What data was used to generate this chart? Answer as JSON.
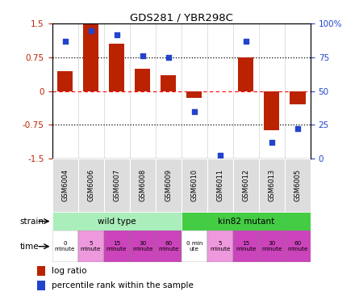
{
  "title": "GDS281 / YBR298C",
  "categories": [
    "GSM6004",
    "GSM6006",
    "GSM6007",
    "GSM6008",
    "GSM6009",
    "GSM6010",
    "GSM6011",
    "GSM6012",
    "GSM6013",
    "GSM6005"
  ],
  "log_ratio": [
    0.45,
    1.5,
    1.05,
    0.5,
    0.35,
    -0.15,
    0.0,
    0.75,
    -0.88,
    -0.3
  ],
  "percentile_pct": [
    87,
    95,
    92,
    76,
    75,
    35,
    2,
    87,
    12,
    22
  ],
  "bar_color": "#bb2200",
  "dot_color": "#2244cc",
  "ylim_left": [
    -1.5,
    1.5
  ],
  "ylim_right": [
    0,
    100
  ],
  "yticks_left": [
    -1.5,
    -0.75,
    0,
    0.75,
    1.5
  ],
  "yticks_right": [
    0,
    25,
    50,
    75,
    100
  ],
  "strain_labels": [
    "wild type",
    "kin82 mutant"
  ],
  "strain_color_wt": "#aaeebb",
  "strain_color_mut": "#44cc44",
  "time_labels": [
    "0\nminute",
    "5\nminute",
    "15\nminute",
    "30\nminute",
    "60\nminute",
    "0 min\nute",
    "5\nminute",
    "15\nminute",
    "30\nminute",
    "60\nminute"
  ],
  "time_color_white": "#ffffff",
  "time_color_light": "#ee99dd",
  "time_color_dark": "#cc44bb",
  "time_colors": [
    "#ffffff",
    "#ee99dd",
    "#cc44bb",
    "#cc44bb",
    "#cc44bb",
    "#ffffff",
    "#ee99dd",
    "#cc44bb",
    "#cc44bb",
    "#cc44bb"
  ],
  "legend_items": [
    "log ratio",
    "percentile rank within the sample"
  ],
  "bar_width": 0.6
}
